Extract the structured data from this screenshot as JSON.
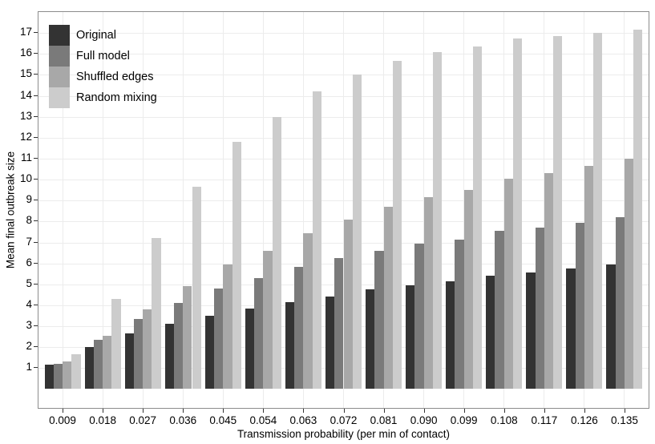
{
  "chart_data": {
    "type": "bar",
    "title": "",
    "xlabel": "Transmission probability (per min of contact)",
    "ylabel": "Mean final outbreak size",
    "categories": [
      "0.009",
      "0.018",
      "0.027",
      "0.036",
      "0.045",
      "0.054",
      "0.063",
      "0.072",
      "0.081",
      "0.090",
      "0.099",
      "0.108",
      "0.117",
      "0.126",
      "0.135"
    ],
    "series": [
      {
        "name": "Original",
        "color": "#333333",
        "values": [
          1.15,
          2.0,
          2.65,
          3.1,
          3.5,
          3.85,
          4.15,
          4.4,
          4.75,
          4.95,
          5.15,
          5.4,
          5.55,
          5.75,
          5.95
        ]
      },
      {
        "name": "Full model",
        "color": "#7a7a7a",
        "values": [
          1.2,
          2.35,
          3.35,
          4.1,
          4.8,
          5.3,
          5.85,
          6.25,
          6.6,
          6.95,
          7.15,
          7.55,
          7.7,
          7.95,
          8.2
        ]
      },
      {
        "name": "Shuffled edges",
        "color": "#a8a8a8",
        "values": [
          1.3,
          2.55,
          3.8,
          4.9,
          5.95,
          6.6,
          7.45,
          8.1,
          8.7,
          9.15,
          9.5,
          10.05,
          10.3,
          10.65,
          11.0
        ]
      },
      {
        "name": "Random mixing",
        "color": "#cccccc",
        "values": [
          1.65,
          4.3,
          7.2,
          9.65,
          11.8,
          13.0,
          14.2,
          15.0,
          15.65,
          16.1,
          16.35,
          16.75,
          16.85,
          17.0,
          17.15
        ]
      }
    ],
    "y_ticks": [
      "1",
      "2",
      "3",
      "4",
      "5",
      "6",
      "7",
      "8",
      "9",
      "10",
      "11",
      "12",
      "13",
      "14",
      "15",
      "16",
      "17"
    ],
    "ylim": [
      -0.9,
      18.0
    ],
    "legend_position": "top-left-inside",
    "grid": true,
    "grid_color": "#ececec",
    "panel_border_color": "#8c8c8c",
    "background": "#ffffff",
    "bar_group_width_fraction": 0.9
  }
}
